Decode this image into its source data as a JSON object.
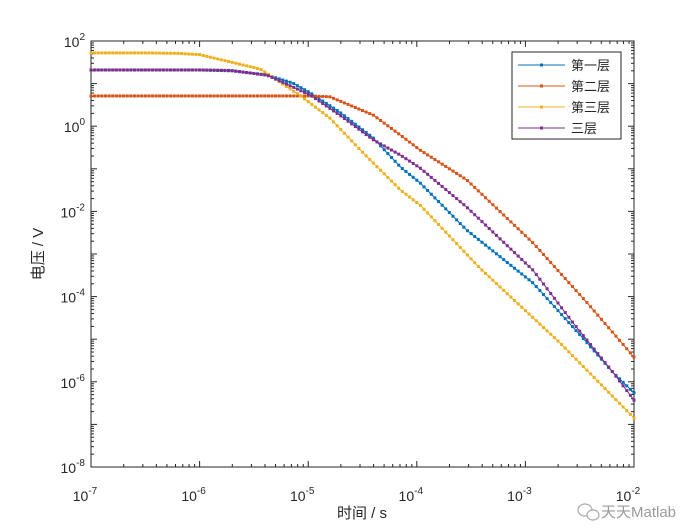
{
  "chart_data": {
    "type": "line",
    "title": "",
    "xlabel": "时间 / s",
    "ylabel": "电压 / V",
    "xscale": "log",
    "yscale": "log",
    "xlim": [
      1e-07,
      0.01
    ],
    "ylim": [
      1e-08,
      100.0
    ],
    "x_ticks": [
      {
        "base": "10",
        "exp": "-7"
      },
      {
        "base": "10",
        "exp": "-6"
      },
      {
        "base": "10",
        "exp": "-5"
      },
      {
        "base": "10",
        "exp": "-4"
      },
      {
        "base": "10",
        "exp": "-3"
      },
      {
        "base": "10",
        "exp": "-2"
      }
    ],
    "y_ticks": [
      {
        "base": "10",
        "exp": "-8"
      },
      {
        "base": "10",
        "exp": "-6"
      },
      {
        "base": "10",
        "exp": "-4"
      },
      {
        "base": "10",
        "exp": "-2"
      },
      {
        "base": "10",
        "exp": "0"
      },
      {
        "base": "10",
        "exp": "2"
      }
    ],
    "grid": false,
    "legend_position": "top-right",
    "note": "points given as [log10(time), log10(voltage)]",
    "series": [
      {
        "name": "第一层",
        "color": "#0072BD",
        "points": [
          [
            -7,
            1.32
          ],
          [
            -6,
            1.32
          ],
          [
            -5.7,
            1.3
          ],
          [
            -5.38,
            1.2
          ],
          [
            -5.14,
            1.01
          ],
          [
            -4.98,
            0.78
          ],
          [
            -4.71,
            0.33
          ],
          [
            -4.4,
            -0.28
          ],
          [
            -4.15,
            -0.96
          ],
          [
            -3.97,
            -1.33
          ],
          [
            -3.54,
            -2.44
          ],
          [
            -2.93,
            -3.68
          ],
          [
            -2.43,
            -5.09
          ],
          [
            -2.19,
            -5.79
          ],
          [
            -2.0,
            -6.26
          ]
        ]
      },
      {
        "name": "第二层",
        "color": "#D95319",
        "points": [
          [
            -7,
            0.71
          ],
          [
            -5.5,
            0.71
          ],
          [
            -5.0,
            0.71
          ],
          [
            -4.8,
            0.69
          ],
          [
            -4.4,
            0.26
          ],
          [
            -4.15,
            -0.21
          ],
          [
            -3.97,
            -0.56
          ],
          [
            -3.54,
            -1.26
          ],
          [
            -2.93,
            -2.74
          ],
          [
            -2.43,
            -4.15
          ],
          [
            -2.0,
            -5.42
          ]
        ]
      },
      {
        "name": "第三层",
        "color": "#EDB120",
        "points": [
          [
            -7,
            1.72
          ],
          [
            -6.5,
            1.72
          ],
          [
            -6.2,
            1.71
          ],
          [
            -6.0,
            1.68
          ],
          [
            -5.44,
            1.34
          ],
          [
            -5.08,
            0.73
          ],
          [
            -4.8,
            0.19
          ],
          [
            -4.52,
            -0.56
          ],
          [
            -4.15,
            -1.5
          ],
          [
            -3.97,
            -1.85
          ],
          [
            -3.42,
            -3.33
          ],
          [
            -2.68,
            -5.09
          ],
          [
            -2.0,
            -6.85
          ]
        ]
      },
      {
        "name": "三层",
        "color": "#7E2F8E",
        "points": [
          [
            -7,
            1.32
          ],
          [
            -6,
            1.32
          ],
          [
            -5.72,
            1.31
          ],
          [
            -5.38,
            1.2
          ],
          [
            -4.98,
            0.73
          ],
          [
            -4.71,
            0.26
          ],
          [
            -4.4,
            -0.32
          ],
          [
            -4.15,
            -0.68
          ],
          [
            -3.97,
            -0.98
          ],
          [
            -3.54,
            -1.9
          ],
          [
            -2.93,
            -3.38
          ],
          [
            -2.56,
            -4.62
          ],
          [
            -2.19,
            -5.79
          ],
          [
            -2.0,
            -6.43
          ]
        ]
      }
    ]
  },
  "watermark": "天天Matlab"
}
